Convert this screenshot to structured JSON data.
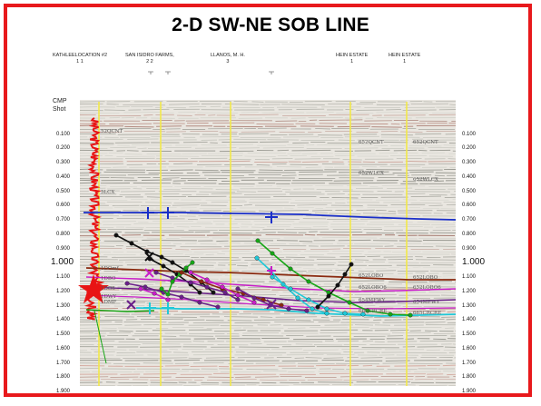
{
  "title": "2-D SW-NE SOB LINE",
  "header_label": {
    "line1": "CMP",
    "line2": "Shot"
  },
  "wells": [
    {
      "name": "KATHLEELOCATION #2",
      "nums": "1      1"
    },
    {
      "name": "SAN ISIDRO FARMS,",
      "nums": "2 2"
    },
    {
      "name": "LLANOS, M. H.",
      "nums": "3"
    },
    {
      "name": "HEIN ESTATE",
      "nums": "1"
    },
    {
      "name": "HEIN ESTATE",
      "nums": "1"
    }
  ],
  "time_axis": [
    "0.100",
    "0.200",
    "0.300",
    "0.400",
    "0.500",
    "0.600",
    "0.700",
    "0.800",
    "0.900",
    "1.000",
    "1.100",
    "1.200",
    "1.300",
    "1.400",
    "1.500",
    "1.600",
    "1.700",
    "1.800",
    "1.900"
  ],
  "horizon_labels_left": [
    "52QCNT",
    "5LCX",
    "1DOmf",
    "1DBO",
    "1DO6",
    "1DWY",
    "1DMF"
  ],
  "horizon_labels_right": [
    "652QCNT",
    "652QCNT",
    "652WLCX",
    "652WLCX",
    "652LOBO",
    "652LOBO",
    "652LOBO6",
    "652LOBO6",
    "654MFWY",
    "654MFWY",
    "665CRCRE",
    "665CRCRE"
  ],
  "colors": {
    "frame": "#e8191c",
    "blue_horizon": "#1a2fc9",
    "well_line": "#f2e84a",
    "red_log": "#e81414",
    "green": "#17a617",
    "cyan": "#20c8d8",
    "magenta": "#c81ec8",
    "purple": "#6a1f8a",
    "black": "#111111",
    "brown": "#8a2a10",
    "star": "#e81414"
  }
}
